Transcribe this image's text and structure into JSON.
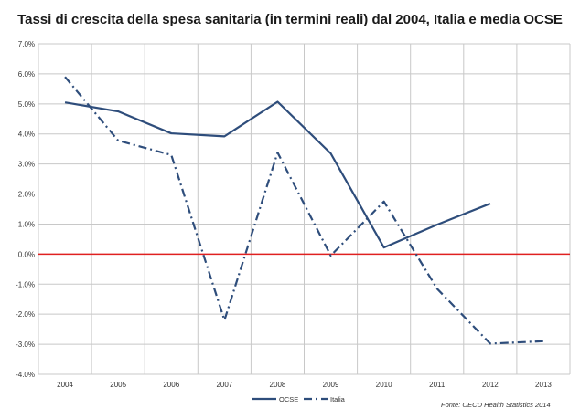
{
  "chart_data": {
    "type": "line",
    "title": "Tassi di crescita della spesa sanitaria (in termini reali) dal 2004, Italia e media OCSE",
    "categories": [
      "2004",
      "2005",
      "2006",
      "2007",
      "2008",
      "2009",
      "2010",
      "2011",
      "2012",
      "2013"
    ],
    "y_ticks": [
      "7.0%",
      "6.0%",
      "5.0%",
      "4.0%",
      "3.0%",
      "2.0%",
      "1.0%",
      "0.0%",
      "-1.0%",
      "-2.0%",
      "-3.0%",
      "-4.0%"
    ],
    "ylim": [
      -4,
      7
    ],
    "grid": true,
    "zero_line_color": "#e02020",
    "series": [
      {
        "name": "OCSE",
        "color": "#2e4d7b",
        "style": "solid",
        "values": [
          5.05,
          4.75,
          4.02,
          3.92,
          5.07,
          3.35,
          0.22,
          0.98,
          1.68,
          null
        ]
      },
      {
        "name": "Italia",
        "color": "#2e4d7b",
        "style": "dashdot",
        "values": [
          5.9,
          3.78,
          3.3,
          -2.2,
          3.38,
          -0.05,
          1.75,
          -1.15,
          -2.98,
          -2.9
        ]
      }
    ],
    "legend_position": "bottom-center",
    "source": "Fonte: OECD Health Statistics 2014"
  }
}
